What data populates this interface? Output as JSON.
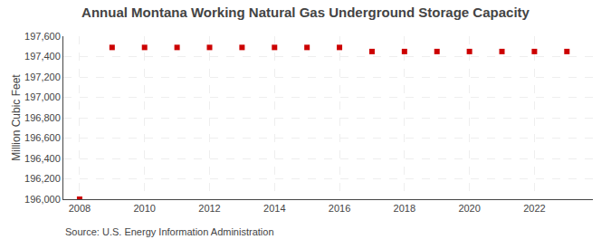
{
  "chart_data": {
    "type": "scatter",
    "title": "Annual Montana Working Natural Gas Underground Storage Capacity",
    "y_label": "Million Cubic Feet",
    "annotations": [
      "Source: U.S. Energy Information Administration"
    ],
    "x": [
      2008,
      2009,
      2010,
      2011,
      2012,
      2013,
      2014,
      2015,
      2016,
      2017,
      2018,
      2019,
      2020,
      2021,
      2022,
      2023
    ],
    "values": [
      196000,
      197490,
      197490,
      197490,
      197490,
      197490,
      197490,
      197490,
      197490,
      197450,
      197450,
      197450,
      197450,
      197450,
      197450,
      197450
    ],
    "color": "#cc0000",
    "marker": "square",
    "xlim": [
      2007.5,
      2023.8
    ],
    "ylim": [
      196000,
      197600
    ],
    "xticks": [
      2008,
      2010,
      2012,
      2014,
      2016,
      2018,
      2020,
      2022
    ],
    "yticks": [
      {
        "value": 196000,
        "label": "196,000"
      },
      {
        "value": 196200,
        "label": "196,200"
      },
      {
        "value": 196400,
        "label": "196,400"
      },
      {
        "value": 196600,
        "label": "196,600"
      },
      {
        "value": 196800,
        "label": "196,800"
      },
      {
        "value": 197000,
        "label": "197,000"
      },
      {
        "value": 197200,
        "label": "197,200"
      },
      {
        "value": 197400,
        "label": "197,400"
      },
      {
        "value": 197600,
        "label": "197,600"
      }
    ],
    "grid": true
  }
}
